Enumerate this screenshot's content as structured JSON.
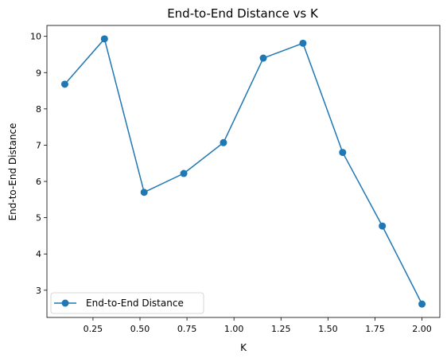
{
  "chart_data": {
    "type": "line",
    "title": "End-to-End Distance vs K",
    "xlabel": "K",
    "ylabel": "End-to-End Distance",
    "xlim": [
      0.005,
      2.095
    ],
    "ylim": [
      2.25,
      10.3
    ],
    "xticks": [
      0.25,
      0.5,
      0.75,
      1.0,
      1.25,
      1.5,
      1.75,
      2.0
    ],
    "xtick_labels": [
      "0.25",
      "0.50",
      "0.75",
      "1.00",
      "1.25",
      "1.50",
      "1.75",
      "2.00"
    ],
    "yticks": [
      3,
      4,
      5,
      6,
      7,
      8,
      9,
      10
    ],
    "ytick_labels": [
      "3",
      "4",
      "5",
      "6",
      "7",
      "8",
      "9",
      "10"
    ],
    "grid": false,
    "legend_position": "lower-left",
    "series": [
      {
        "name": "End-to-End Distance",
        "color": "#1f77b4",
        "marker": "circle",
        "x": [
          0.1,
          0.311,
          0.522,
          0.733,
          0.944,
          1.156,
          1.367,
          1.578,
          1.789,
          2.0
        ],
        "y": [
          8.68,
          9.93,
          5.7,
          6.22,
          7.07,
          9.4,
          9.81,
          6.8,
          4.77,
          2.62
        ]
      }
    ]
  }
}
